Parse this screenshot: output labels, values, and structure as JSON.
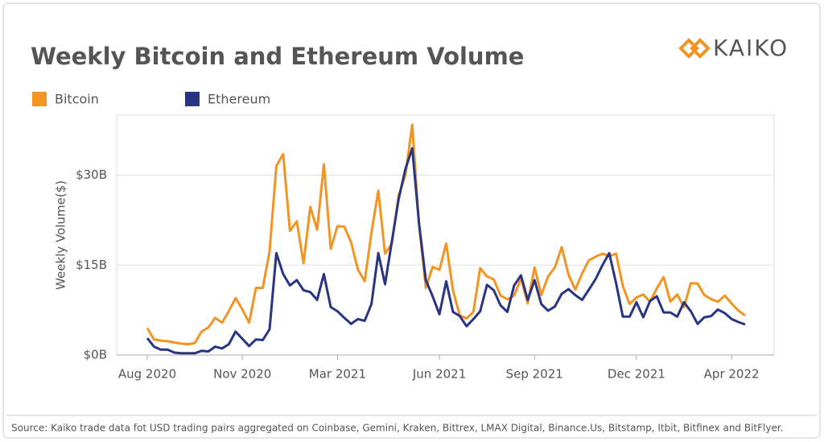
{
  "chart_data": {
    "type": "line",
    "title": "Weekly Bitcoin and Ethereum Volume",
    "logo": "KAIKO",
    "y_label": "Weekly Volume($)",
    "source": "Source: Kaiko trade data fot USD trading pairs aggregated on Coinbase, Gemini, Kraken, Bittrex, LMAX Digital, Binance.Us, Bitstamp, Itbit, Bitfinex and BitFlyer.",
    "categories": [
      "Aug 2020",
      null,
      null,
      null,
      null,
      null,
      null,
      null,
      null,
      null,
      null,
      null,
      null,
      null,
      "Nov 2020",
      null,
      null,
      null,
      null,
      null,
      null,
      null,
      null,
      null,
      null,
      null,
      null,
      null,
      "Mar 2021",
      null,
      null,
      null,
      null,
      null,
      null,
      null,
      null,
      null,
      null,
      null,
      null,
      null,
      null,
      "Jun 2021",
      null,
      null,
      null,
      null,
      null,
      null,
      null,
      null,
      null,
      null,
      null,
      null,
      null,
      "Sep 2021",
      null,
      null,
      null,
      null,
      null,
      null,
      null,
      null,
      null,
      null,
      null,
      null,
      null,
      null,
      "Dec 2021",
      null,
      null,
      null,
      null,
      null,
      null,
      null,
      null,
      null,
      null,
      null,
      null,
      null,
      "Apr 2022",
      null,
      null
    ],
    "series": [
      {
        "name": "Bitcoin",
        "color": "#f29422",
        "values": [
          4.5,
          2.6,
          2.4,
          2.3,
          2.1,
          1.9,
          1.8,
          2.0,
          3.9,
          4.6,
          6.2,
          5.4,
          7.3,
          9.5,
          7.6,
          5.4,
          11.2,
          11.2,
          17.3,
          31.5,
          33.5,
          20.7,
          22.3,
          15.3,
          24.7,
          20.9,
          31.8,
          17.7,
          21.5,
          21.4,
          18.8,
          14.3,
          12.3,
          20.4,
          27.4,
          16.9,
          18.6,
          26.6,
          30,
          38.4,
          21.8,
          11.2,
          14.7,
          14.2,
          18.6,
          10.8,
          6.6,
          6.1,
          7.2,
          14.5,
          13.1,
          12.6,
          9.9,
          9.3,
          9.9,
          12.8,
          8.6,
          14.6,
          10,
          13.1,
          14.6,
          18,
          13.4,
          10.9,
          13.6,
          15.8,
          16.4,
          16.9,
          16.5,
          16.9,
          11.5,
          8.5,
          9.6,
          10.1,
          8.9,
          11.1,
          13,
          8.9,
          10.1,
          8,
          12,
          11.9,
          10,
          9.3,
          8.9,
          9.9,
          8.6,
          7.4,
          6.6
        ]
      },
      {
        "name": "Ethereum",
        "color": "#283583",
        "values": [
          2.8,
          1.4,
          0.9,
          0.9,
          0.4,
          0.3,
          0.3,
          0.3,
          0.7,
          0.6,
          1.4,
          1.1,
          1.8,
          3.9,
          2.7,
          1.5,
          2.6,
          2.5,
          4.3,
          17,
          13.5,
          11.6,
          12.5,
          10.8,
          10.5,
          9.2,
          13.5,
          8,
          7.3,
          6.2,
          5.2,
          6,
          5.7,
          8.5,
          17,
          11.8,
          19,
          26,
          31,
          34.5,
          22,
          12.5,
          9.8,
          6.8,
          12.3,
          7.2,
          6.5,
          4.8,
          6,
          7.3,
          11.7,
          10.8,
          8.3,
          7.2,
          11.6,
          13.3,
          9.2,
          12.5,
          8.5,
          7.4,
          8.1,
          10.2,
          11,
          10,
          9.2,
          10.9,
          12.7,
          15,
          17,
          12,
          6.4,
          6.4,
          8.8,
          6.3,
          9,
          9.8,
          7.1,
          7.1,
          6.4,
          8.8,
          7.3,
          5.2,
          6.3,
          6.5,
          7.6,
          7,
          6,
          5.5,
          5.1
        ]
      }
    ],
    "ylim": [
      0,
      40
    ],
    "yticks": [
      {
        "value": 0,
        "label": "$0B"
      },
      {
        "value": 15,
        "label": "$15B"
      },
      {
        "value": 30,
        "label": "$30B"
      }
    ],
    "grid": true
  }
}
